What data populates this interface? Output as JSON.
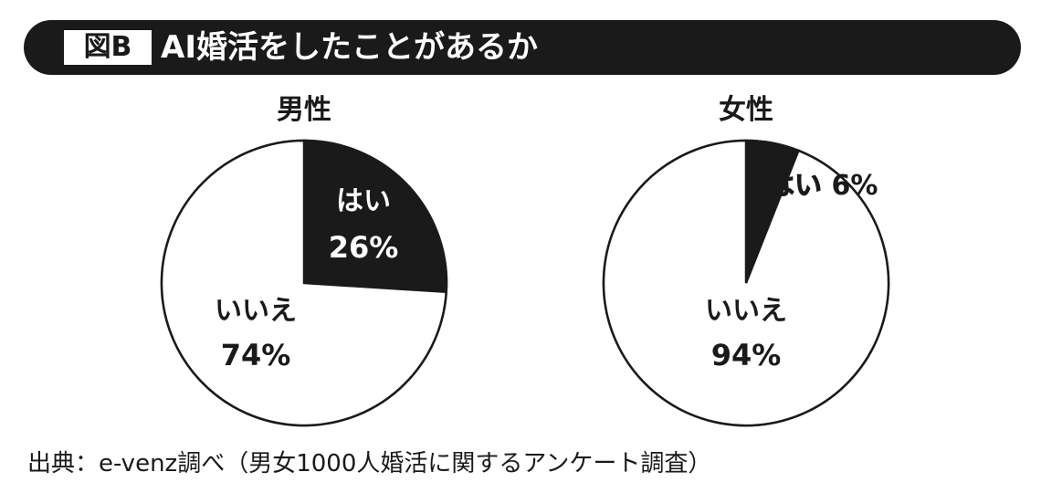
{
  "header": {
    "figure_label": "図B",
    "title": "AI婚活をしたことがあるか"
  },
  "chart_data": [
    {
      "type": "pie",
      "title": "男性",
      "labels": [
        "はい",
        "いいえ"
      ],
      "values": [
        26,
        74
      ],
      "value_labels": [
        "26%",
        "74%"
      ],
      "colors": [
        "#1a1a1a",
        "#ffffff"
      ]
    },
    {
      "type": "pie",
      "title": "女性",
      "labels": [
        "はい",
        "いいえ"
      ],
      "values": [
        6,
        94
      ],
      "value_labels": [
        "6%",
        "94%"
      ],
      "colors": [
        "#1a1a1a",
        "#ffffff"
      ]
    }
  ],
  "footer": {
    "source": "出典：e-venz調べ（男女1000人婚活に関するアンケート調査）"
  }
}
